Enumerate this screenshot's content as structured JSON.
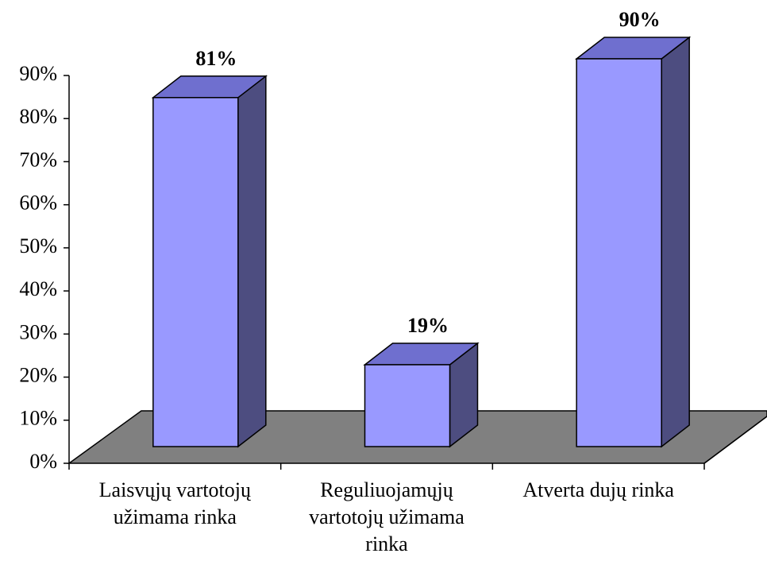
{
  "chart_data": {
    "type": "bar3d",
    "categories": [
      "Laisvųjų vartotojų užimama rinka",
      "Reguliuojamųjų vartotojų užimama rinka",
      "Atverta dujų rinka"
    ],
    "values": [
      81,
      19,
      90
    ],
    "value_labels": [
      "81%",
      "19%",
      "90%"
    ],
    "color": "#9999ff",
    "ylim": [
      0,
      90
    ],
    "yticks": [
      {
        "value": 0,
        "label": "0%"
      },
      {
        "value": 10,
        "label": "10%"
      },
      {
        "value": 20,
        "label": "20%"
      },
      {
        "value": 30,
        "label": "30%"
      },
      {
        "value": 40,
        "label": "40%"
      },
      {
        "value": 50,
        "label": "50%"
      },
      {
        "value": 60,
        "label": "60%"
      },
      {
        "value": 70,
        "label": "70%"
      },
      {
        "value": 80,
        "label": "80%"
      },
      {
        "value": 90,
        "label": "90%"
      }
    ],
    "grid": false
  }
}
